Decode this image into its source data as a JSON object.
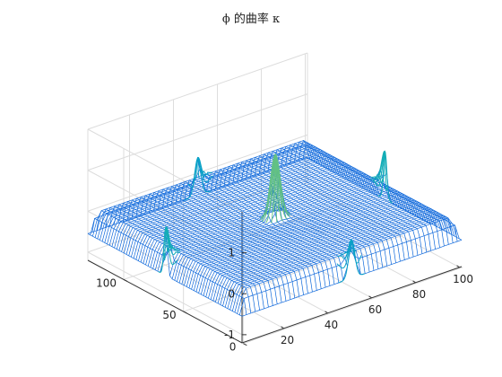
{
  "chart_data": {
    "type": "surface-mesh",
    "title": "ϕ 的曲率 κ",
    "xlabel": "",
    "ylabel": "",
    "zlabel": "",
    "x_ticks": [
      20,
      40,
      60,
      80,
      100
    ],
    "y_ticks": [
      0,
      50,
      100
    ],
    "z_ticks": [
      -1,
      0,
      1
    ],
    "xlim": [
      1,
      101
    ],
    "ylim": [
      1,
      130
    ],
    "zlim": [
      -1.2,
      2.0
    ],
    "grid": true,
    "colormap": "parula",
    "plateau_z": 0,
    "edge_z": -0.55,
    "spikes": [
      {
        "x": 51,
        "y": 65,
        "z": 1.55
      },
      {
        "x": 1,
        "y": 65,
        "z": 1.15
      },
      {
        "x": 101,
        "y": 65,
        "z": 1.15
      },
      {
        "x": 51,
        "y": 1,
        "z": 0.9
      },
      {
        "x": 51,
        "y": 130,
        "z": 0.9
      }
    ]
  }
}
